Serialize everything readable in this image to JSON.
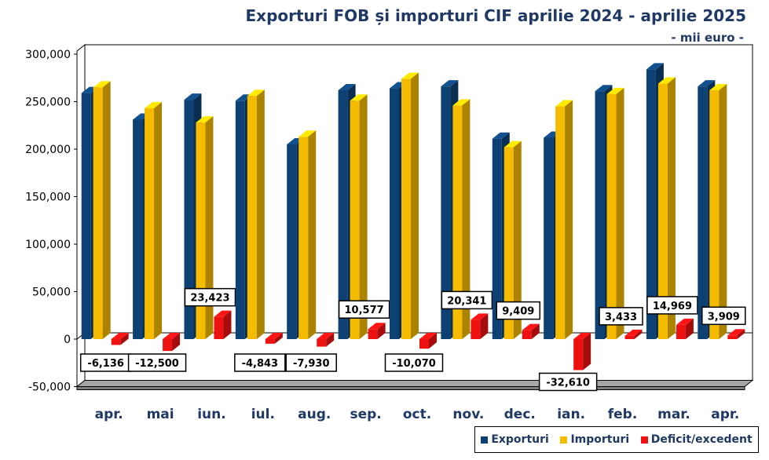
{
  "chart_data": {
    "type": "bar",
    "title": "Exporturi FOB și importuri CIF aprilie 2024 - aprilie 2025",
    "subtitle": "- mii euro -",
    "categories": [
      "apr.",
      "mai",
      "iun.",
      "iul.",
      "aug.",
      "sep.",
      "oct.",
      "nov.",
      "dec.",
      "ian.",
      "feb.",
      "mar.",
      "apr."
    ],
    "series": [
      {
        "name": "Exporturi",
        "color": "#0e4173",
        "values": [
          259000,
          231000,
          252000,
          251000,
          205000,
          262000,
          264000,
          266000,
          211000,
          212000,
          261000,
          284000,
          266000
        ]
      },
      {
        "name": "Importuri",
        "color": "#f5bb00",
        "values": [
          265000,
          243000,
          228000,
          256000,
          213000,
          251000,
          274000,
          246000,
          202000,
          245000,
          258000,
          269000,
          262000
        ]
      },
      {
        "name": "Deficit/excedent",
        "color": "#ee1111",
        "values": [
          -6136,
          -12500,
          23423,
          -4843,
          -7930,
          10577,
          -10070,
          20341,
          9409,
          -32610,
          3433,
          14969,
          3909
        ]
      }
    ],
    "data_labels": [
      "-6,136",
      "-12,500",
      "23,423",
      "-4,843",
      "-7,930",
      "10,577",
      "-10,070",
      "20,341",
      "9,409",
      "-32,610",
      "3,433",
      "14,969",
      "3,909"
    ],
    "y_ticks": [
      "-50,000",
      "0",
      "50,000",
      "100,000",
      "150,000",
      "200,000",
      "250,000",
      "300,000"
    ],
    "ylim": [
      -50000,
      300000
    ],
    "xlabel": "",
    "ylabel": "",
    "legend_position": "bottom-right",
    "grid": false
  }
}
